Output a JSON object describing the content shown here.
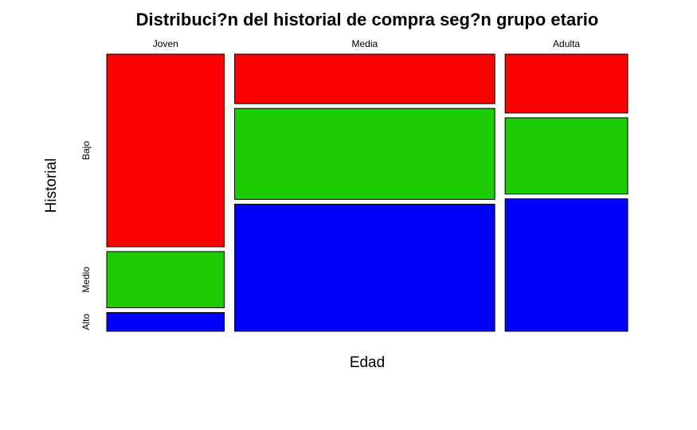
{
  "chart_data": {
    "type": "mosaic",
    "title": "Distribuci?n del historial de compra seg?n grupo etario",
    "xlabel": "Edad",
    "ylabel": "Historial",
    "categories": [
      "Joven",
      "Media",
      "Adulta"
    ],
    "column_widths": [
      0.235,
      0.52,
      0.245
    ],
    "series": [
      {
        "name": "Bajo",
        "color": "#ff0000",
        "values": [
          0.72,
          0.185,
          0.22
        ]
      },
      {
        "name": "Medio",
        "color": "#1ccc05",
        "values": [
          0.21,
          0.34,
          0.285
        ]
      },
      {
        "name": "Alto",
        "color": "#0000ff",
        "values": [
          0.07,
          0.475,
          0.495
        ]
      }
    ]
  }
}
